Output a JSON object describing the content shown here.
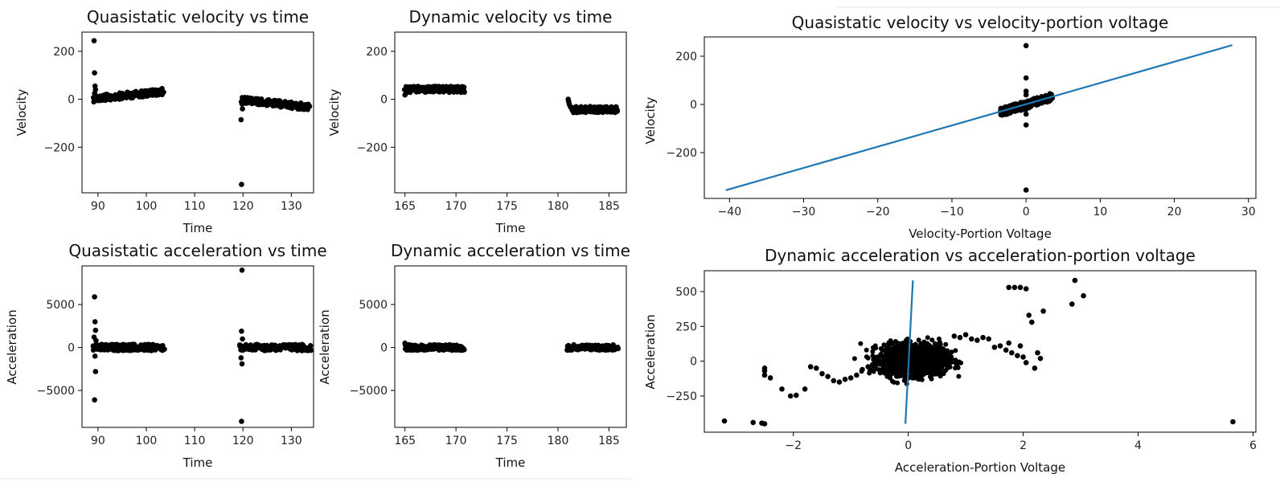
{
  "chart_data": [
    {
      "type": "scatter",
      "title": "Quasistatic velocity vs time",
      "xlabel": "Time",
      "ylabel": "Velocity",
      "xlim": [
        86.7,
        134.6
      ],
      "ylim": [
        -390,
        280
      ],
      "xticks": [
        90,
        100,
        110,
        120,
        130
      ],
      "yticks": [
        -200,
        0,
        200
      ],
      "grid": false,
      "segments": [
        {
          "x_start": 89.0,
          "x_end": 103.5,
          "y_start": 2,
          "y_end": 32,
          "thickness": 8,
          "count": 160
        },
        {
          "x_start": 119.5,
          "x_end": 133.8,
          "y_start": -2,
          "y_end": -33,
          "thickness": 8,
          "count": 160
        }
      ],
      "points": [
        [
          89.2,
          244
        ],
        [
          89.3,
          110
        ],
        [
          89.4,
          55
        ],
        [
          89.5,
          40
        ],
        [
          89.3,
          25
        ],
        [
          89.6,
          15
        ],
        [
          119.8,
          -20
        ],
        [
          119.9,
          -40
        ],
        [
          119.6,
          -85
        ],
        [
          119.7,
          -355
        ]
      ]
    },
    {
      "type": "scatter",
      "title": "Dynamic velocity vs time",
      "xlabel": "Time",
      "ylabel": "Velocity",
      "xlim": [
        164.0,
        186.7
      ],
      "ylim": [
        -390,
        280
      ],
      "xticks": [
        165,
        170,
        175,
        180,
        185
      ],
      "yticks": [
        -200,
        0,
        200
      ],
      "grid": false,
      "segments": [
        {
          "x_start": 165.0,
          "x_end": 170.8,
          "y_start": 41,
          "y_end": 41,
          "thickness": 8,
          "count": 140
        },
        {
          "x_start": 181.3,
          "x_end": 185.9,
          "y_start": -43,
          "y_end": -43,
          "thickness": 8,
          "count": 120
        }
      ],
      "points": [
        [
          165.0,
          18
        ],
        [
          165.1,
          25
        ],
        [
          165.2,
          30
        ],
        [
          165.3,
          35
        ],
        [
          181.0,
          0
        ],
        [
          181.05,
          -10
        ],
        [
          181.1,
          -20
        ],
        [
          181.2,
          -30
        ],
        [
          181.3,
          -35
        ]
      ]
    },
    {
      "type": "scatter",
      "title": "Quasistatic velocity vs velocity-portion voltage",
      "xlabel": "Velocity-Portion Voltage",
      "ylabel": "Velocity",
      "xlim": [
        -43.4,
        31.0
      ],
      "ylim": [
        -390,
        280
      ],
      "xticks": [
        -40,
        -30,
        -20,
        -10,
        0,
        10,
        20,
        30
      ],
      "yticks": [
        -200,
        0,
        200
      ],
      "grid": false,
      "segments": [
        {
          "x_start": -3.5,
          "x_end": 3.5,
          "y_start": -33,
          "y_end": 30,
          "thickness": 10,
          "count": 160
        }
      ],
      "points": [
        [
          0,
          244
        ],
        [
          0,
          110
        ],
        [
          0,
          55
        ],
        [
          0,
          40
        ],
        [
          0,
          -85
        ],
        [
          0,
          -355
        ],
        [
          0,
          -20
        ],
        [
          0,
          -40
        ]
      ],
      "series": [
        {
          "type": "line",
          "x": [
            -40.5,
            27.8
          ],
          "y": [
            -356,
            246
          ]
        }
      ]
    },
    {
      "type": "scatter",
      "title": "Quasistatic acceleration vs time",
      "xlabel": "Time",
      "ylabel": "Acceleration",
      "xlim": [
        86.7,
        134.6
      ],
      "ylim": [
        -9300,
        9500
      ],
      "xticks": [
        90,
        100,
        110,
        120,
        130
      ],
      "yticks": [
        -5000,
        0,
        5000
      ],
      "grid": false,
      "segments": [
        {
          "x_start": 89.0,
          "x_end": 103.6,
          "y_start": 0,
          "y_end": 0,
          "thickness": 8,
          "count": 160
        },
        {
          "x_start": 119.3,
          "x_end": 134.0,
          "y_start": 0,
          "y_end": 0,
          "thickness": 8,
          "count": 160
        }
      ],
      "points": [
        [
          89.3,
          5900
        ],
        [
          89.4,
          3000
        ],
        [
          89.5,
          2000
        ],
        [
          89.2,
          1200
        ],
        [
          89.6,
          800
        ],
        [
          89.4,
          -1000
        ],
        [
          89.5,
          -2800
        ],
        [
          89.3,
          -6100
        ],
        [
          119.8,
          9000
        ],
        [
          119.7,
          1900
        ],
        [
          119.9,
          1000
        ],
        [
          119.6,
          -1200
        ],
        [
          119.8,
          -1900
        ],
        [
          119.7,
          -8600
        ]
      ]
    },
    {
      "type": "scatter",
      "title": "Dynamic acceleration vs time",
      "xlabel": "Time",
      "ylabel": "Acceleration",
      "xlim": [
        164.0,
        186.7
      ],
      "ylim": [
        -9300,
        9500
      ],
      "xticks": [
        165,
        170,
        175,
        180,
        185
      ],
      "yticks": [
        -5000,
        0,
        5000
      ],
      "grid": false,
      "segments": [
        {
          "x_start": 165.0,
          "x_end": 170.8,
          "y_start": 0,
          "y_end": 0,
          "thickness": 7,
          "count": 140
        },
        {
          "x_start": 180.9,
          "x_end": 185.9,
          "y_start": 0,
          "y_end": 0,
          "thickness": 7,
          "count": 120
        }
      ],
      "points": [
        [
          165.0,
          500
        ],
        [
          165.1,
          300
        ],
        [
          180.9,
          -300
        ],
        [
          181.0,
          -250
        ]
      ]
    },
    {
      "type": "scatter",
      "title": "Dynamic acceleration vs acceleration-portion voltage",
      "xlabel": "Acceleration-Portion Voltage",
      "ylabel": "Acceleration",
      "xlim": [
        -3.55,
        6.05
      ],
      "ylim": [
        -510,
        650
      ],
      "xticks": [
        -2,
        0,
        2,
        4,
        6
      ],
      "yticks": [
        -250,
        0,
        250,
        500
      ],
      "grid": false,
      "cluster": {
        "cx": 0.1,
        "cy": 10,
        "rx": 0.55,
        "ry": 110,
        "count": 1400
      },
      "points": [
        [
          -3.2,
          -430
        ],
        [
          -2.7,
          -440
        ],
        [
          -2.55,
          -445
        ],
        [
          -2.5,
          -450
        ],
        [
          -2.5,
          -50
        ],
        [
          -2.5,
          -70
        ],
        [
          -2.5,
          -100
        ],
        [
          -2.4,
          -120
        ],
        [
          -2.2,
          -200
        ],
        [
          -2.05,
          -250
        ],
        [
          -1.95,
          -245
        ],
        [
          -1.8,
          -200
        ],
        [
          -1.7,
          -40
        ],
        [
          -1.6,
          -50
        ],
        [
          -1.5,
          -90
        ],
        [
          -1.4,
          -110
        ],
        [
          -1.3,
          -140
        ],
        [
          -1.2,
          -150
        ],
        [
          -1.1,
          -130
        ],
        [
          -1.0,
          -120
        ],
        [
          -0.9,
          -100
        ],
        [
          -0.8,
          -60
        ],
        [
          -0.7,
          -40
        ],
        [
          -0.6,
          -20
        ],
        [
          0.8,
          180
        ],
        [
          0.9,
          170
        ],
        [
          1.0,
          190
        ],
        [
          1.1,
          160
        ],
        [
          1.2,
          150
        ],
        [
          1.3,
          170
        ],
        [
          1.4,
          160
        ],
        [
          1.5,
          100
        ],
        [
          1.6,
          110
        ],
        [
          1.7,
          80
        ],
        [
          1.75,
          130
        ],
        [
          1.8,
          60
        ],
        [
          1.9,
          40
        ],
        [
          1.95,
          110
        ],
        [
          2.0,
          30
        ],
        [
          2.05,
          -10
        ],
        [
          2.1,
          330
        ],
        [
          2.2,
          -50
        ],
        [
          2.15,
          280
        ],
        [
          2.25,
          60
        ],
        [
          2.3,
          20
        ],
        [
          2.35,
          360
        ],
        [
          1.75,
          530
        ],
        [
          1.85,
          530
        ],
        [
          1.95,
          530
        ],
        [
          2.05,
          520
        ],
        [
          2.85,
          410
        ],
        [
          2.9,
          580
        ],
        [
          3.05,
          470
        ],
        [
          5.65,
          -435
        ]
      ],
      "series": [
        {
          "type": "line",
          "x": [
            -0.05,
            0.08
          ],
          "y": [
            -450,
            580
          ]
        }
      ]
    }
  ]
}
